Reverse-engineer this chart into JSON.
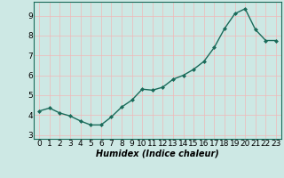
{
  "x": [
    0,
    1,
    2,
    3,
    4,
    5,
    6,
    7,
    8,
    9,
    10,
    11,
    12,
    13,
    14,
    15,
    16,
    17,
    18,
    19,
    20,
    21,
    22,
    23
  ],
  "y": [
    4.2,
    4.35,
    4.1,
    3.95,
    3.7,
    3.5,
    3.5,
    3.9,
    4.4,
    4.75,
    5.3,
    5.25,
    5.4,
    5.8,
    6.0,
    6.3,
    6.7,
    7.4,
    8.35,
    9.1,
    9.35,
    8.3,
    7.75,
    7.75
  ],
  "line_color": "#1a6b5a",
  "marker": "D",
  "marker_size": 2.0,
  "line_width": 1.0,
  "background_color": "#cde8e4",
  "grid_color": "#f0b8b8",
  "xlabel": "Humidex (Indice chaleur)",
  "xlabel_fontsize": 7,
  "tick_fontsize": 6.5,
  "ylim": [
    2.8,
    9.7
  ],
  "xlim": [
    -0.5,
    23.5
  ],
  "yticks": [
    3,
    4,
    5,
    6,
    7,
    8,
    9
  ],
  "xticks": [
    0,
    1,
    2,
    3,
    4,
    5,
    6,
    7,
    8,
    9,
    10,
    11,
    12,
    13,
    14,
    15,
    16,
    17,
    18,
    19,
    20,
    21,
    22,
    23
  ]
}
